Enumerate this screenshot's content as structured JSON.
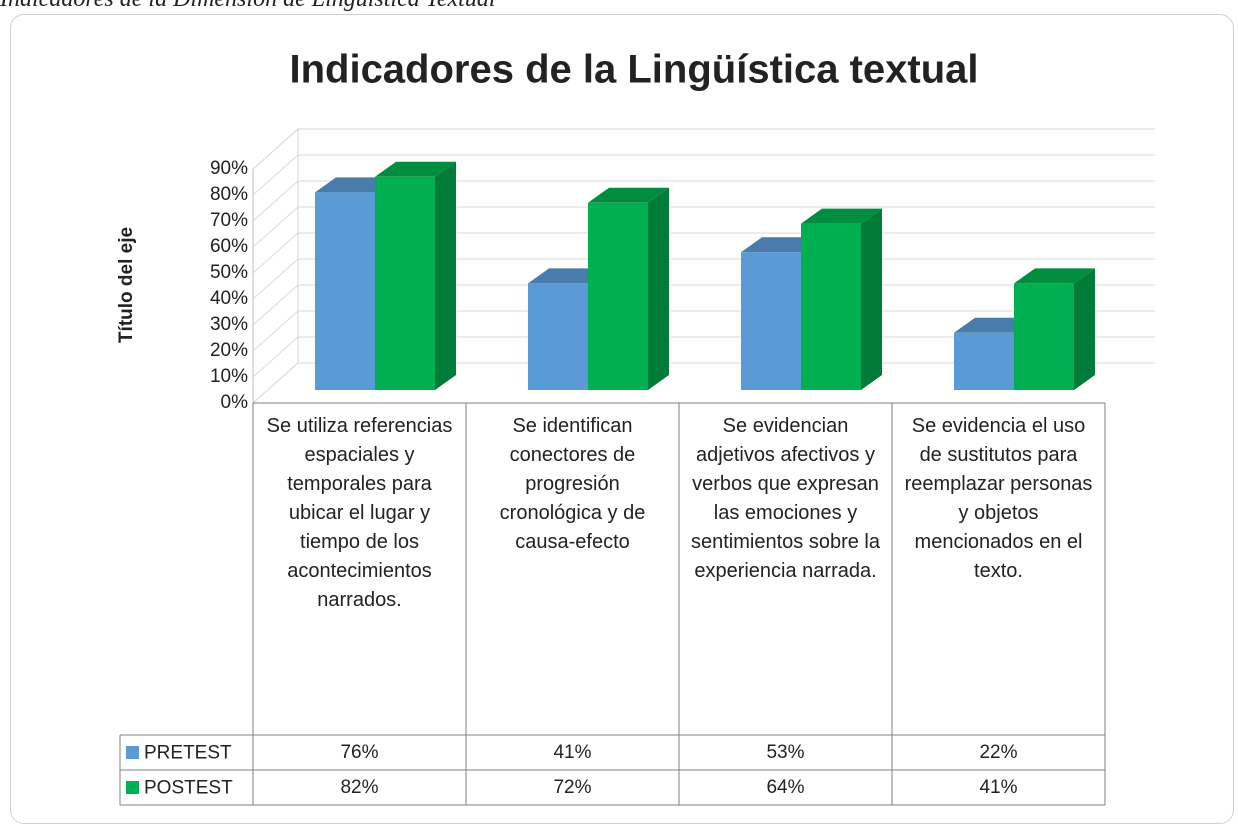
{
  "caption": "Indicadores de la Dimensión de Lingüística Textual",
  "chart_data": {
    "type": "bar3d",
    "title": "Indicadores de la Lingüística textual",
    "ylabel": "Título del eje",
    "categories": [
      "Se utiliza referencias espaciales y temporales para ubicar el lugar y tiempo de los acontecimientos narrados.",
      "Se identifican conectores de progresión cronológica y de causa-efecto",
      "Se evidencian adjetivos afectivos y verbos que expresan las emociones y sentimientos sobre la experiencia narrada.",
      "Se evidencia el uso de sustitutos para reemplazar personas y objetos mencionados en el texto."
    ],
    "series": [
      {
        "name": "PRETEST",
        "color": "#5b9bd5",
        "values": [
          76,
          41,
          53,
          22
        ],
        "value_labels": [
          "76%",
          "41%",
          "53%",
          "22%"
        ]
      },
      {
        "name": "POSTEST",
        "color": "#00b050",
        "values": [
          82,
          72,
          64,
          41
        ],
        "value_labels": [
          "82%",
          "72%",
          "64%",
          "41%"
        ]
      }
    ],
    "ylim": [
      0,
      90
    ],
    "yticks": [
      {
        "value": 0,
        "label": "0%"
      },
      {
        "value": 10,
        "label": "10%"
      },
      {
        "value": 20,
        "label": "20%"
      },
      {
        "value": 30,
        "label": "30%"
      },
      {
        "value": 40,
        "label": "40%"
      },
      {
        "value": 50,
        "label": "50%"
      },
      {
        "value": 60,
        "label": "60%"
      },
      {
        "value": 70,
        "label": "70%"
      },
      {
        "value": 80,
        "label": "80%"
      },
      {
        "value": 90,
        "label": "90%"
      }
    ],
    "grid": true
  }
}
